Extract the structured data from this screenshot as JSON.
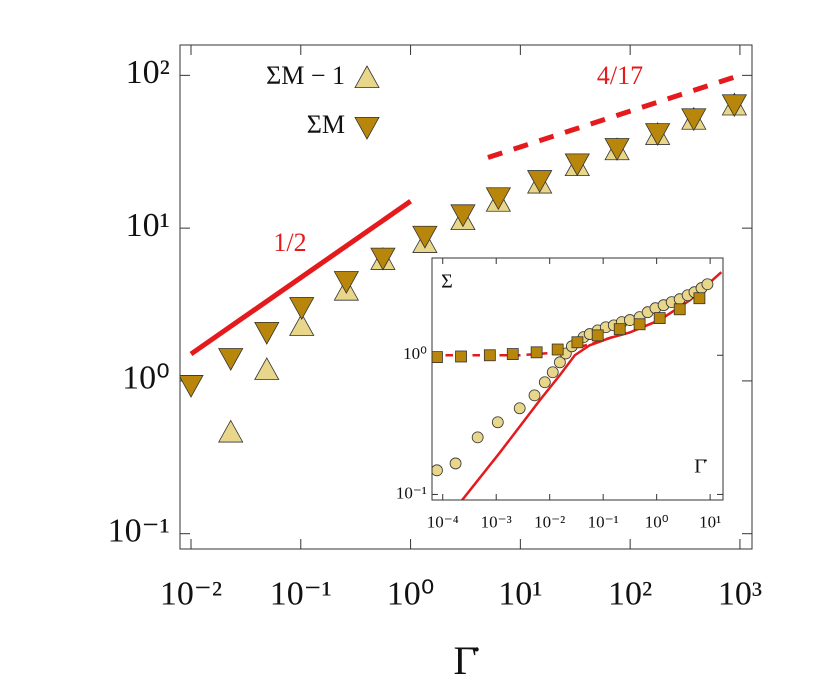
{
  "chart_data": [
    {
      "type": "scatter",
      "x_label": "Γ̇",
      "xlog": true,
      "ylog": true,
      "xlim": [
        0.00794,
        1288
      ],
      "ylim": [
        0.0794,
        158
      ],
      "xticks": [
        {
          "value": 0.01,
          "label": "10⁻²"
        },
        {
          "value": 0.1,
          "label": "10⁻¹"
        },
        {
          "value": 1,
          "label": "10⁰"
        },
        {
          "value": 10,
          "label": "10¹"
        },
        {
          "value": 100,
          "label": "10²"
        },
        {
          "value": 1000,
          "label": "10³"
        }
      ],
      "yticks": [
        {
          "value": 0.1,
          "label": "10⁻¹"
        },
        {
          "value": 1,
          "label": "10⁰"
        },
        {
          "value": 10,
          "label": "10¹"
        },
        {
          "value": 100,
          "label": "10²"
        }
      ],
      "legend": "upper left",
      "annotations": [
        "1/2",
        "4/17"
      ],
      "series": [
        {
          "name": "ΣM − 1",
          "color": "#e8d68a",
          "marker": "triangle-up",
          "x": [
            0.01,
            0.023,
            0.049,
            0.102,
            0.26,
            0.56,
            1.35,
            3.0,
            6.3,
            15,
            33,
            76,
            178,
            380,
            890
          ],
          "values": [
            null,
            0.46,
            1.18,
            2.29,
            3.9,
            6.2,
            8.0,
            11.3,
            14.9,
            19.6,
            25.5,
            32.4,
            40.8,
            51.3,
            63.6
          ]
        },
        {
          "name": "ΣM",
          "color": "#b8860b",
          "marker": "triangle-down",
          "x": [
            0.01,
            0.023,
            0.049,
            0.102,
            0.26,
            0.56,
            1.35,
            3.0,
            6.3,
            15,
            33,
            76,
            178,
            380,
            890
          ],
          "values": [
            0.94,
            1.41,
            2.09,
            3.04,
            4.5,
            6.4,
            8.9,
            12.3,
            15.9,
            20.6,
            26.5,
            33.4,
            41.8,
            52.3,
            64.6
          ]
        },
        {
          "color": "#e41a1c",
          "marker": "none",
          "style": "solid",
          "x": [
            0.01,
            1
          ],
          "values": [
            1.5,
            15
          ]
        },
        {
          "color": "#e41a1c",
          "marker": "none",
          "style": "dashed",
          "x": [
            5.07,
            1000
          ],
          "values": [
            29,
            100
          ]
        }
      ]
    },
    {
      "type": "scatter",
      "x_label": "Γ̇",
      "y_label": "Σ",
      "xlog": true,
      "ylog": true,
      "xlim": [
        6.3e-05,
        17.4
      ],
      "ylim": [
        0.0912,
        5.0
      ],
      "xticks": [
        {
          "value": 0.0001,
          "label": "10⁻⁴"
        },
        {
          "value": 0.001,
          "label": "10⁻³"
        },
        {
          "value": 0.01,
          "label": "10⁻²"
        },
        {
          "value": 0.1,
          "label": "10⁻¹"
        },
        {
          "value": 1,
          "label": "10⁰"
        },
        {
          "value": 10,
          "label": "10¹"
        }
      ],
      "yticks": [
        {
          "value": 0.1,
          "label": "10⁻¹"
        },
        {
          "value": 1,
          "label": "10⁰"
        }
      ],
      "series": [
        {
          "color": "#e41a1c",
          "marker": "none",
          "style": "dashed",
          "x": [
            6.3e-05,
            0.00275,
            0.0155,
            0.056,
            0.2
          ],
          "values": [
            1,
            1,
            1.05,
            1.2,
            1.4
          ]
        },
        {
          "color": "#e41a1c",
          "marker": "none",
          "style": "solid",
          "x": [
            0.00023,
            0.00117,
            0.0065,
            0.0155,
            0.0295,
            0.056,
            0.132,
            0.316,
            1.14,
            4.2,
            16.2
          ],
          "values": [
            0.091,
            0.2,
            0.474,
            0.72,
            1,
            1.18,
            1.33,
            1.46,
            1.79,
            2.49,
            3.95
          ]
        },
        {
          "color": "#e8d68a",
          "marker": "circle",
          "x": [
            7.8e-05,
            0.000174,
            0.00045,
            0.00107,
            0.00275,
            0.0052,
            0.0081,
            0.0114,
            0.0155,
            0.02,
            0.026,
            0.033,
            0.043,
            0.056,
            0.079,
            0.112,
            0.158,
            0.223,
            0.316,
            0.48,
            0.68,
            0.95,
            1.35,
            1.91,
            2.7,
            3.8,
            5.1,
            6.9,
            8.9
          ],
          "values": [
            0.149,
            0.167,
            0.257,
            0.33,
            0.416,
            0.515,
            0.64,
            0.755,
            0.89,
            1.03,
            1.16,
            1.24,
            1.35,
            1.42,
            1.51,
            1.59,
            1.64,
            1.73,
            1.79,
            1.88,
            2.04,
            2.18,
            2.29,
            2.41,
            2.53,
            2.7,
            2.84,
            3.04,
            3.24
          ]
        },
        {
          "color": "#b8860b",
          "marker": "square",
          "x": [
            7.8e-05,
            0.00022,
            0.00076,
            0.00204,
            0.0057,
            0.0141,
            0.033,
            0.079,
            0.204,
            0.48,
            1.14,
            2.7,
            6.3
          ],
          "values": [
            0.97,
            0.98,
            1.0,
            1.02,
            1.05,
            1.1,
            1.24,
            1.39,
            1.54,
            1.67,
            1.85,
            2.14,
            2.57
          ]
        }
      ]
    }
  ]
}
